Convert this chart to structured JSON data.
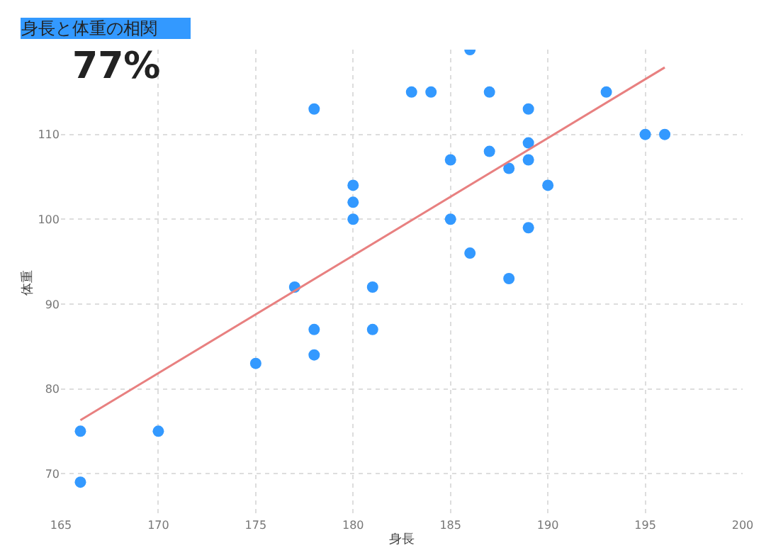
{
  "chart_data": {
    "type": "scatter",
    "xlabel": "身長",
    "ylabel": "体重",
    "annotations": [
      "身長と体重の相関",
      "77%"
    ],
    "xlim": [
      165,
      200
    ],
    "xticks": [
      165,
      170,
      175,
      180,
      185,
      190,
      195,
      200
    ],
    "ylim": [
      65,
      120
    ],
    "yticks": [
      70,
      80,
      90,
      100,
      110
    ],
    "grid": true,
    "series": [
      {
        "marker": "circle",
        "color": "#3399ff",
        "x": [
          166,
          166,
          170,
          175,
          177,
          178,
          178,
          178,
          180,
          180,
          180,
          181,
          181,
          183,
          184,
          186,
          187,
          189,
          193,
          195,
          196,
          185,
          187,
          189,
          189,
          188,
          190,
          185,
          189,
          186,
          188
        ],
        "values": [
          75,
          69,
          75,
          83,
          92,
          87,
          84,
          113,
          104,
          102,
          100,
          92,
          87,
          115,
          115,
          120,
          115,
          113,
          115,
          110,
          110,
          107,
          108,
          109,
          107,
          106,
          104,
          100,
          99,
          96,
          93
        ]
      },
      {
        "type": "line",
        "color": "#e88080",
        "x": [
          166,
          196
        ],
        "values": [
          76.3,
          117.9
        ]
      }
    ]
  }
}
